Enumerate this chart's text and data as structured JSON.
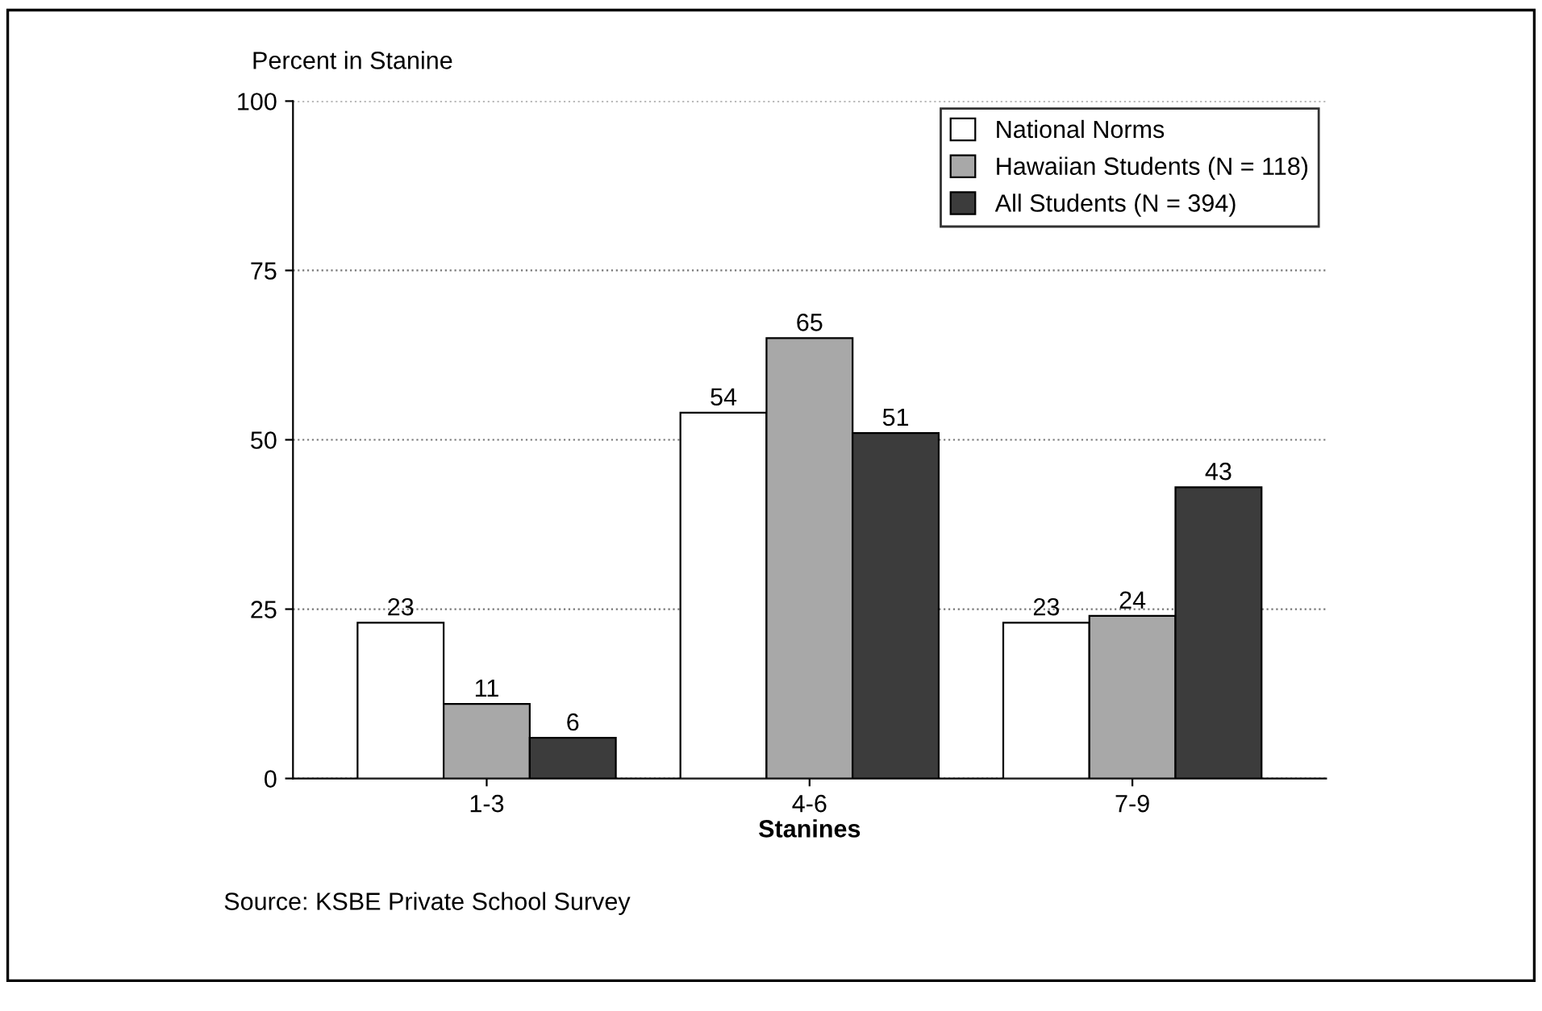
{
  "chart_data": {
    "type": "bar",
    "ylabel": "Percent in Stanine",
    "xlabel": "Stanines",
    "categories": [
      "1-3",
      "4-6",
      "7-9"
    ],
    "series": [
      {
        "name": "National Norms",
        "color": "#ffffff",
        "values": [
          23,
          54,
          23
        ]
      },
      {
        "name": "Hawaiian Students (N = 118)",
        "color": "#a8a8a8",
        "values": [
          11,
          65,
          24
        ]
      },
      {
        "name": "All Students (N = 394)",
        "color": "#3c3c3c",
        "values": [
          6,
          51,
          43
        ]
      }
    ],
    "ylim": [
      0,
      100
    ],
    "yticks": [
      0,
      25,
      50,
      75,
      100
    ],
    "grid": "y",
    "legend": "top right",
    "data_labels": true,
    "annotations": [
      "Source: KSBE Private School Survey"
    ]
  }
}
